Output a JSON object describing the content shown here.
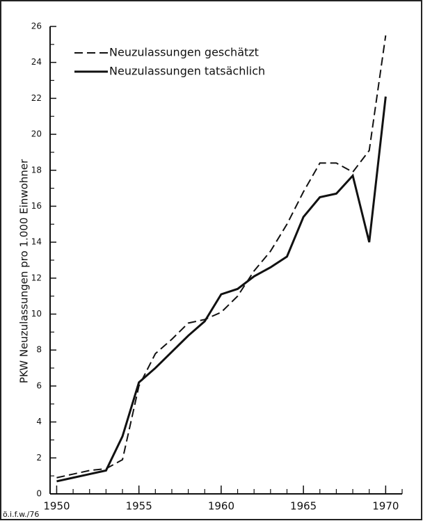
{
  "chart_data": {
    "type": "line",
    "y_label": "PKW  Neuzulassungen pro 1.000 Einwohner",
    "footnote": "ö.i.f.w./76",
    "x": [
      1950,
      1951,
      1952,
      1953,
      1954,
      1955,
      1956,
      1957,
      1958,
      1959,
      1960,
      1961,
      1962,
      1963,
      1964,
      1965,
      1966,
      1967,
      1968,
      1969,
      1970
    ],
    "series": [
      {
        "name": "Neuzulassungen geschätzt",
        "color": "#111111",
        "dash": true,
        "values": [
          0.9,
          1.1,
          1.3,
          1.4,
          1.9,
          6.0,
          7.8,
          8.6,
          9.5,
          9.7,
          10.1,
          11.0,
          12.4,
          13.5,
          15.0,
          16.8,
          18.4,
          18.4,
          17.9,
          19.1,
          25.5
        ]
      },
      {
        "name": "Neuzulassungen tatsächlich",
        "color": "#111111",
        "dash": false,
        "values": [
          0.7,
          0.9,
          1.1,
          1.3,
          3.2,
          6.2,
          7.0,
          7.9,
          8.8,
          9.6,
          11.1,
          11.4,
          12.1,
          12.6,
          13.2,
          15.4,
          16.5,
          16.7,
          17.7,
          14.0,
          22.1
        ]
      }
    ],
    "xlim": [
      1949.6,
      1971
    ],
    "xticks": [
      1950,
      1955,
      1960,
      1965,
      1970
    ],
    "ylim": [
      0,
      26
    ],
    "yticks": [
      0,
      2,
      4,
      6,
      8,
      10,
      12,
      14,
      16,
      18,
      20,
      22,
      24,
      26
    ],
    "legend": "upper left"
  }
}
